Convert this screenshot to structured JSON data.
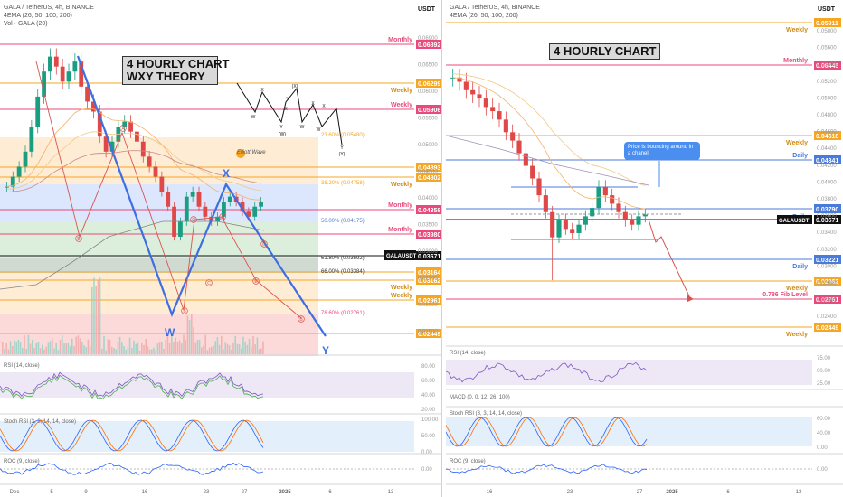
{
  "left": {
    "header": {
      "symbol_line": "GALA / TetherUS, 4h, BINANCE",
      "ema_line": "4EMA (26, 50, 100, 200)",
      "vol_line": "Vol · GALA (20)",
      "currency": "USDT"
    },
    "title_box": [
      "4 HOURLY CHART",
      "WXY THEORY"
    ],
    "elliott_logo": "Elliott Wave",
    "wave_labels": {
      "w": "W",
      "x": "X",
      "y": "Y"
    },
    "mini_pattern_labels": [
      "W",
      "X",
      "Y",
      "(X)",
      "Y",
      "X",
      "W",
      "X",
      "W",
      "X",
      "(W)",
      "Y",
      "(Y)"
    ],
    "circled_labels": [
      "A",
      "B",
      "C",
      "A",
      "B",
      "C",
      "D",
      "E",
      "B",
      "A",
      "C"
    ],
    "price_axis_ticks": [
      "0.06900",
      "0.06500",
      "0.06000",
      "0.05500",
      "0.05000",
      "0.04500",
      "0.04000",
      "0.03500",
      "0.03000",
      "0.02500",
      "0.02000",
      "0.01500"
    ],
    "levels": [
      {
        "price": "0.06892",
        "label": "Monthly",
        "color": "#e84a7b"
      },
      {
        "price": "0.06299",
        "label": "Weekly",
        "color": "#f5a623"
      },
      {
        "price": "0.05906",
        "label": "Weekly",
        "color": "#e84a7b"
      },
      {
        "price": "0.04893",
        "label": "",
        "color": "#f5a623"
      },
      {
        "price": "0.04802",
        "label": "Weekly",
        "color": "#f5a623"
      },
      {
        "price": "0.04358",
        "label": "Monthly",
        "color": "#e84a7b"
      },
      {
        "price": "0.03980",
        "label": "Monthly",
        "color": "#e84a7b"
      },
      {
        "price": "0.03671",
        "label": "GALAUSDT",
        "color": "#111111"
      },
      {
        "price": "0.03164",
        "label": "",
        "color": "#f5a623"
      },
      {
        "price": "0.03162",
        "label": "Weekly",
        "color": "#f5a623"
      },
      {
        "price": "0.02961",
        "label": "Weekly",
        "color": "#f5a623"
      },
      {
        "price": "0.02449",
        "label": "",
        "color": "#f5a623"
      }
    ],
    "fib_labels": [
      "23.60% (0.05480)",
      "38.20% (0.04758)",
      "50.00% (0.04175)",
      "61.80% (0.03592)",
      "66.00% (0.03384)",
      "78.60% (0.02761)"
    ],
    "rsi": {
      "title": "RSI (14, close)",
      "ticks": [
        "80.00",
        "60.00",
        "40.00",
        "20.00"
      ]
    },
    "stoch": {
      "title": "Stoch RSI (3, 3, 14, 14, close)",
      "ticks": [
        "100.00",
        "50.00",
        "0.00"
      ]
    },
    "roc": {
      "title": "ROC (9, close)",
      "ticks": [
        "0.00"
      ]
    },
    "time_axis": [
      "Dec",
      "5",
      "9",
      "16",
      "23",
      "27",
      "2025",
      "6",
      "13"
    ]
  },
  "right": {
    "header": {
      "symbol_line": "GALA / TetherUS, 4h, BINANCE",
      "ema_line": "4EMA (26, 50, 100, 200)",
      "currency": "USDT"
    },
    "title_box": [
      "4 HOURLY CHART"
    ],
    "callout": "Price is bouncing around in a chanel",
    "price_axis_ticks": [
      "0.05800",
      "0.05600",
      "0.05400",
      "0.05200",
      "0.05000",
      "0.04800",
      "0.04600",
      "0.04400",
      "0.04200",
      "0.04000",
      "0.03800",
      "0.03600",
      "0.03400",
      "0.03200",
      "0.03000",
      "0.02800",
      "0.02600",
      "0.02400"
    ],
    "levels": [
      {
        "price": "0.05911",
        "label": "Weekly",
        "color": "#f5a623"
      },
      {
        "price": "0.06445",
        "label": "Monthly",
        "color": "#e84a7b"
      },
      {
        "price": "0.04618",
        "label": "Weekly",
        "color": "#f5a623"
      },
      {
        "price": "0.04341",
        "label": "Daily",
        "color": "#4a7bd8"
      },
      {
        "price": "0.03790",
        "label": "Daily",
        "color": "#4a7bd8"
      },
      {
        "price": "0.03671",
        "label": "GALAUSDT",
        "color": "#111111"
      },
      {
        "price": "0.03221",
        "label": "Daily",
        "color": "#4a7bd8"
      },
      {
        "price": "0.02962",
        "label": "Weekly",
        "color": "#f5a623"
      },
      {
        "price": "0.02761",
        "label": "0.786 Fib Level",
        "color": "#e84a7b"
      },
      {
        "price": "0.02449",
        "label": "Weekly",
        "color": "#f5a623"
      }
    ],
    "rsi": {
      "title": "RSI (14, close)",
      "ticks": [
        "75.00",
        "60.00",
        "25.00"
      ]
    },
    "macd": {
      "title": "MACD (0, 0, 12, 26, 100)"
    },
    "stoch": {
      "title": "Stoch RSI (3, 3, 14, 14, close)",
      "ticks": [
        "60.00",
        "40.00",
        "0.00"
      ]
    },
    "roc": {
      "title": "ROC (9, close)",
      "ticks": [
        "0.00"
      ]
    },
    "time_axis": [
      "16",
      "23",
      "27",
      "2025",
      "6",
      "13"
    ]
  },
  "chart_data": [
    {
      "type": "candlestick",
      "title": "GALA / TetherUS, 4h, BINANCE",
      "ylabel": "USDT",
      "ylim": [
        0.015,
        0.071
      ],
      "close_series": [
        0.04,
        0.042,
        0.044,
        0.047,
        0.052,
        0.058,
        0.063,
        0.066,
        0.064,
        0.061,
        0.063,
        0.065,
        0.06,
        0.057,
        0.055,
        0.05,
        0.047,
        0.049,
        0.052,
        0.053,
        0.051,
        0.049,
        0.046,
        0.044,
        0.042,
        0.039,
        0.036,
        0.03,
        0.033,
        0.038,
        0.039,
        0.036,
        0.034,
        0.033,
        0.034,
        0.037,
        0.038,
        0.037,
        0.035,
        0.034,
        0.036,
        0.037
      ]
    },
    {
      "type": "candlestick",
      "title": "GALA / TetherUS, 4h, BINANCE",
      "ylabel": "USDT",
      "ylim": [
        0.023,
        0.059
      ],
      "close_series": [
        0.053,
        0.0525,
        0.0515,
        0.051,
        0.0505,
        0.0495,
        0.049,
        0.048,
        0.0465,
        0.0455,
        0.044,
        0.0425,
        0.041,
        0.039,
        0.037,
        0.034,
        0.036,
        0.035,
        0.0345,
        0.0355,
        0.0365,
        0.0375,
        0.04,
        0.039,
        0.038,
        0.037,
        0.036,
        0.0355,
        0.0365,
        0.0367
      ]
    }
  ]
}
